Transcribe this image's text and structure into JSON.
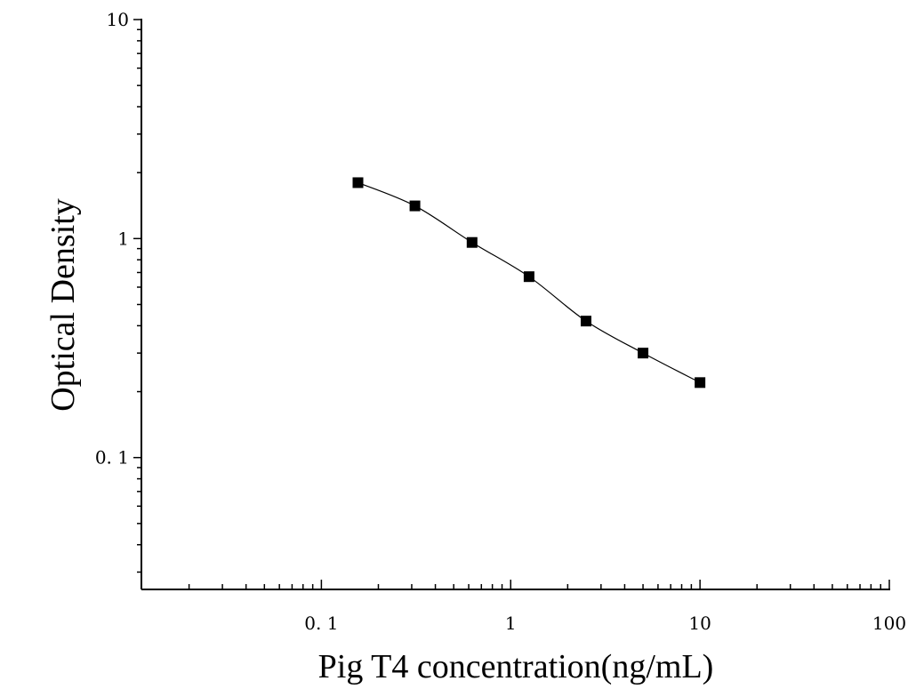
{
  "chart_data": {
    "type": "scatter",
    "title": "",
    "xlabel": "Pig T4 concentration(ng/mL)",
    "ylabel": "Optical Density",
    "xscale": "log",
    "yscale": "log",
    "xlim": [
      0.0112,
      100
    ],
    "ylim": [
      0.025,
      10
    ],
    "grid": false,
    "legend": "none",
    "x_ticks": [
      {
        "value": 0.1,
        "label": "0. 1"
      },
      {
        "value": 1,
        "label": "1"
      },
      {
        "value": 10,
        "label": "10"
      },
      {
        "value": 100,
        "label": "100"
      }
    ],
    "y_ticks": [
      {
        "value": 0.1,
        "label": "0. 1"
      },
      {
        "value": 1,
        "label": "1"
      },
      {
        "value": 10,
        "label": "10"
      }
    ],
    "series": [
      {
        "x": [
          0.156,
          0.312,
          0.625,
          1.25,
          2.5,
          5,
          10
        ],
        "y": [
          1.8,
          1.41,
          0.96,
          0.67,
          0.42,
          0.3,
          0.22
        ],
        "marker": "square",
        "fit": "smooth-curve"
      }
    ],
    "colors": {
      "marker": "#000000",
      "line": "#000000",
      "axis": "#000000"
    }
  }
}
